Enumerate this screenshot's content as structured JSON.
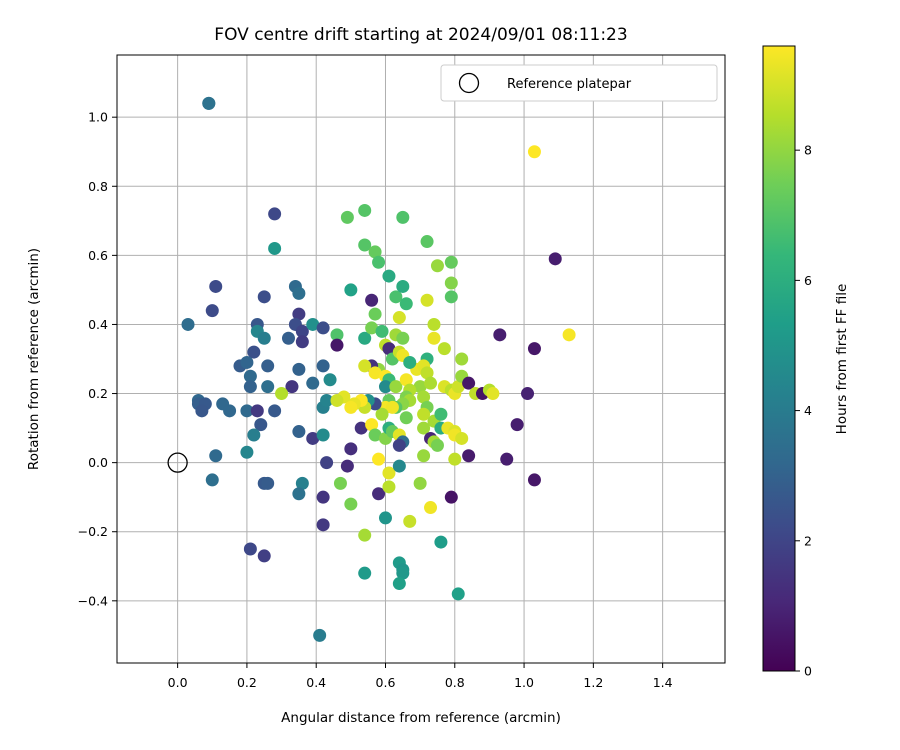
{
  "chart_data": {
    "type": "scatter",
    "title": "FOV centre drift starting at 2024/09/01 08:11:23",
    "xlabel": "Angular distance from reference (arcmin)",
    "ylabel": "Rotation from reference (arcmin)",
    "xlim": [
      -0.175,
      1.58
    ],
    "ylim": [
      -0.58,
      1.18
    ],
    "xticks": [
      0.0,
      0.2,
      0.4,
      0.6,
      0.8,
      1.0,
      1.2,
      1.4
    ],
    "xtick_labels": [
      "0.0",
      "0.2",
      "0.4",
      "0.6",
      "0.8",
      "1.0",
      "1.2",
      "1.4"
    ],
    "yticks": [
      -0.4,
      -0.2,
      0.0,
      0.2,
      0.4,
      0.6,
      0.8,
      1.0
    ],
    "ytick_labels": [
      "−0.4",
      "−0.2",
      "0.0",
      "0.2",
      "0.4",
      "0.6",
      "0.8",
      "1.0"
    ],
    "grid": true,
    "legend": {
      "placement": "top-right",
      "entries": [
        "Reference platepar"
      ]
    },
    "reference_point": {
      "x": 0.0,
      "y": 0.0,
      "label": "Reference platepar"
    },
    "colorbar": {
      "label": "Hours from first FF file",
      "colormap": "viridis",
      "range": [
        0,
        9.6
      ],
      "ticks": [
        0,
        2,
        4,
        6,
        8
      ],
      "tick_labels": [
        "0",
        "2",
        "4",
        "6",
        "8"
      ]
    },
    "points": [
      {
        "x": 0.09,
        "y": 1.04,
        "t": 3.9
      },
      {
        "x": 0.09,
        "y": 1.04,
        "t": 3.6
      },
      {
        "x": 0.28,
        "y": 0.72,
        "t": 2.1
      },
      {
        "x": 0.28,
        "y": 0.62,
        "t": 5.1
      },
      {
        "x": 0.03,
        "y": 0.4,
        "t": 3.4
      },
      {
        "x": 0.11,
        "y": 0.51,
        "t": 2.2
      },
      {
        "x": 0.1,
        "y": 0.44,
        "t": 2.2
      },
      {
        "x": 0.25,
        "y": 0.48,
        "t": 2.3
      },
      {
        "x": 0.23,
        "y": 0.4,
        "t": 2.6
      },
      {
        "x": 0.23,
        "y": 0.38,
        "t": 4.4
      },
      {
        "x": 0.25,
        "y": 0.36,
        "t": 4.1
      },
      {
        "x": 0.22,
        "y": 0.32,
        "t": 2.4
      },
      {
        "x": 0.18,
        "y": 0.28,
        "t": 2.8
      },
      {
        "x": 0.2,
        "y": 0.29,
        "t": 3.1
      },
      {
        "x": 0.21,
        "y": 0.25,
        "t": 3.3
      },
      {
        "x": 0.26,
        "y": 0.28,
        "t": 2.9
      },
      {
        "x": 0.21,
        "y": 0.22,
        "t": 3.0
      },
      {
        "x": 0.26,
        "y": 0.22,
        "t": 3.5
      },
      {
        "x": 0.06,
        "y": 0.18,
        "t": 3.2
      },
      {
        "x": 0.06,
        "y": 0.17,
        "t": 2.9
      },
      {
        "x": 0.08,
        "y": 0.17,
        "t": 2.7
      },
      {
        "x": 0.07,
        "y": 0.15,
        "t": 2.6
      },
      {
        "x": 0.13,
        "y": 0.17,
        "t": 3.2
      },
      {
        "x": 0.15,
        "y": 0.15,
        "t": 3.2
      },
      {
        "x": 0.2,
        "y": 0.15,
        "t": 3.3
      },
      {
        "x": 0.23,
        "y": 0.15,
        "t": 1.6
      },
      {
        "x": 0.28,
        "y": 0.15,
        "t": 2.7
      },
      {
        "x": 0.24,
        "y": 0.11,
        "t": 2.6
      },
      {
        "x": 0.22,
        "y": 0.08,
        "t": 4.1
      },
      {
        "x": 0.2,
        "y": 0.03,
        "t": 4.4
      },
      {
        "x": 0.11,
        "y": 0.02,
        "t": 3.3
      },
      {
        "x": 0.1,
        "y": -0.05,
        "t": 3.5
      },
      {
        "x": 0.25,
        "y": -0.06,
        "t": 2.7
      },
      {
        "x": 0.26,
        "y": -0.06,
        "t": 2.8
      },
      {
        "x": 0.21,
        "y": -0.25,
        "t": 2.1
      },
      {
        "x": 0.25,
        "y": -0.27,
        "t": 1.8
      },
      {
        "x": 0.34,
        "y": 0.51,
        "t": 3.3
      },
      {
        "x": 0.35,
        "y": 0.49,
        "t": 3.5
      },
      {
        "x": 0.35,
        "y": 0.43,
        "t": 1.7
      },
      {
        "x": 0.34,
        "y": 0.4,
        "t": 2.3
      },
      {
        "x": 0.36,
        "y": 0.38,
        "t": 2.0
      },
      {
        "x": 0.36,
        "y": 0.35,
        "t": 1.7
      },
      {
        "x": 0.32,
        "y": 0.36,
        "t": 2.9
      },
      {
        "x": 0.39,
        "y": 0.4,
        "t": 4.8
      },
      {
        "x": 0.42,
        "y": 0.39,
        "t": 2.3
      },
      {
        "x": 0.42,
        "y": 0.28,
        "t": 3.0
      },
      {
        "x": 0.35,
        "y": 0.27,
        "t": 3.0
      },
      {
        "x": 0.33,
        "y": 0.22,
        "t": 1.5
      },
      {
        "x": 0.3,
        "y": 0.2,
        "t": 8.5
      },
      {
        "x": 0.39,
        "y": 0.23,
        "t": 3.3
      },
      {
        "x": 0.44,
        "y": 0.24,
        "t": 4.6
      },
      {
        "x": 0.42,
        "y": 0.16,
        "t": 4.2
      },
      {
        "x": 0.43,
        "y": 0.18,
        "t": 4.3
      },
      {
        "x": 0.35,
        "y": 0.09,
        "t": 3.0
      },
      {
        "x": 0.39,
        "y": 0.07,
        "t": 1.7
      },
      {
        "x": 0.42,
        "y": 0.08,
        "t": 4.6
      },
      {
        "x": 0.43,
        "y": 0.0,
        "t": 1.9
      },
      {
        "x": 0.36,
        "y": -0.06,
        "t": 4.2
      },
      {
        "x": 0.35,
        "y": -0.09,
        "t": 3.6
      },
      {
        "x": 0.42,
        "y": -0.1,
        "t": 1.5
      },
      {
        "x": 0.42,
        "y": -0.18,
        "t": 1.6
      },
      {
        "x": 0.41,
        "y": -0.5,
        "t": 4.0
      },
      {
        "x": 0.46,
        "y": 0.37,
        "t": 6.9
      },
      {
        "x": 0.46,
        "y": 0.34,
        "t": 0.6
      },
      {
        "x": 0.49,
        "y": 0.71,
        "t": 7.2
      },
      {
        "x": 0.5,
        "y": 0.5,
        "t": 5.5
      },
      {
        "x": 0.54,
        "y": 0.73,
        "t": 7.0
      },
      {
        "x": 0.54,
        "y": 0.63,
        "t": 7.0
      },
      {
        "x": 0.57,
        "y": 0.61,
        "t": 7.3
      },
      {
        "x": 0.58,
        "y": 0.58,
        "t": 6.8
      },
      {
        "x": 0.56,
        "y": 0.47,
        "t": 1.0
      },
      {
        "x": 0.54,
        "y": 0.36,
        "t": 5.8
      },
      {
        "x": 0.56,
        "y": 0.39,
        "t": 7.6
      },
      {
        "x": 0.57,
        "y": 0.43,
        "t": 7.4
      },
      {
        "x": 0.59,
        "y": 0.38,
        "t": 6.6
      },
      {
        "x": 0.61,
        "y": 0.54,
        "t": 5.8
      },
      {
        "x": 0.63,
        "y": 0.48,
        "t": 6.8
      },
      {
        "x": 0.65,
        "y": 0.51,
        "t": 5.9
      },
      {
        "x": 0.65,
        "y": 0.71,
        "t": 6.9
      },
      {
        "x": 0.66,
        "y": 0.46,
        "t": 6.5
      },
      {
        "x": 0.64,
        "y": 0.42,
        "t": 9.0
      },
      {
        "x": 0.63,
        "y": 0.37,
        "t": 8.2
      },
      {
        "x": 0.65,
        "y": 0.36,
        "t": 7.6
      },
      {
        "x": 0.72,
        "y": 0.64,
        "t": 7.1
      },
      {
        "x": 0.75,
        "y": 0.57,
        "t": 8.1
      },
      {
        "x": 0.79,
        "y": 0.58,
        "t": 7.3
      },
      {
        "x": 0.79,
        "y": 0.52,
        "t": 7.8
      },
      {
        "x": 0.79,
        "y": 0.48,
        "t": 7.0
      },
      {
        "x": 0.72,
        "y": 0.47,
        "t": 9.0
      },
      {
        "x": 0.74,
        "y": 0.4,
        "t": 8.6
      },
      {
        "x": 0.74,
        "y": 0.36,
        "t": 9.3
      },
      {
        "x": 0.77,
        "y": 0.33,
        "t": 8.6
      },
      {
        "x": 0.82,
        "y": 0.3,
        "t": 8.2
      },
      {
        "x": 0.72,
        "y": 0.3,
        "t": 6.1
      },
      {
        "x": 0.69,
        "y": 0.27,
        "t": 9.3
      },
      {
        "x": 0.71,
        "y": 0.28,
        "t": 9.2
      },
      {
        "x": 0.72,
        "y": 0.26,
        "t": 8.7
      },
      {
        "x": 0.7,
        "y": 0.22,
        "t": 8.1
      },
      {
        "x": 0.73,
        "y": 0.23,
        "t": 8.4
      },
      {
        "x": 0.77,
        "y": 0.22,
        "t": 9.1
      },
      {
        "x": 0.79,
        "y": 0.21,
        "t": 8.6
      },
      {
        "x": 0.8,
        "y": 0.2,
        "t": 9.3
      },
      {
        "x": 0.81,
        "y": 0.22,
        "t": 8.9
      },
      {
        "x": 0.82,
        "y": 0.25,
        "t": 8.1
      },
      {
        "x": 0.84,
        "y": 0.23,
        "t": 0.6
      },
      {
        "x": 0.86,
        "y": 0.2,
        "t": 8.7
      },
      {
        "x": 0.88,
        "y": 0.2,
        "t": 0.5
      },
      {
        "x": 0.9,
        "y": 0.21,
        "t": 8.5
      },
      {
        "x": 0.91,
        "y": 0.2,
        "t": 9.2
      },
      {
        "x": 0.71,
        "y": 0.19,
        "t": 8.3
      },
      {
        "x": 0.72,
        "y": 0.16,
        "t": 7.6
      },
      {
        "x": 0.71,
        "y": 0.14,
        "t": 8.7
      },
      {
        "x": 0.74,
        "y": 0.12,
        "t": 8.3
      },
      {
        "x": 0.71,
        "y": 0.1,
        "t": 8.2
      },
      {
        "x": 0.76,
        "y": 0.14,
        "t": 6.6
      },
      {
        "x": 0.76,
        "y": 0.1,
        "t": 5.9
      },
      {
        "x": 0.78,
        "y": 0.1,
        "t": 9.3
      },
      {
        "x": 0.8,
        "y": 0.09,
        "t": 9.1
      },
      {
        "x": 0.8,
        "y": 0.08,
        "t": 9.4
      },
      {
        "x": 0.82,
        "y": 0.07,
        "t": 9.0
      },
      {
        "x": 0.73,
        "y": 0.07,
        "t": 1.0
      },
      {
        "x": 0.74,
        "y": 0.06,
        "t": 8.3
      },
      {
        "x": 0.75,
        "y": 0.05,
        "t": 7.6
      },
      {
        "x": 0.71,
        "y": 0.02,
        "t": 8.1
      },
      {
        "x": 0.8,
        "y": 0.01,
        "t": 8.7
      },
      {
        "x": 0.84,
        "y": 0.02,
        "t": 0.7
      },
      {
        "x": 0.7,
        "y": -0.06,
        "t": 8.0
      },
      {
        "x": 0.73,
        "y": -0.13,
        "t": 9.4
      },
      {
        "x": 0.79,
        "y": -0.1,
        "t": 0.5
      },
      {
        "x": 0.76,
        "y": -0.23,
        "t": 5.3
      },
      {
        "x": 0.81,
        "y": -0.38,
        "t": 5.4
      },
      {
        "x": 0.93,
        "y": 0.37,
        "t": 0.8
      },
      {
        "x": 1.01,
        "y": 0.2,
        "t": 0.9
      },
      {
        "x": 0.98,
        "y": 0.11,
        "t": 0.8
      },
      {
        "x": 0.95,
        "y": 0.01,
        "t": 0.8
      },
      {
        "x": 1.03,
        "y": 0.33,
        "t": 0.6
      },
      {
        "x": 1.09,
        "y": 0.59,
        "t": 0.8
      },
      {
        "x": 1.03,
        "y": 0.9,
        "t": 9.6
      },
      {
        "x": 1.03,
        "y": -0.05,
        "t": 0.6
      },
      {
        "x": 1.13,
        "y": 0.37,
        "t": 9.5
      },
      {
        "x": 0.6,
        "y": 0.34,
        "t": 8.7
      },
      {
        "x": 0.61,
        "y": 0.33,
        "t": 1.2
      },
      {
        "x": 0.62,
        "y": 0.3,
        "t": 7.0
      },
      {
        "x": 0.64,
        "y": 0.32,
        "t": 8.8
      },
      {
        "x": 0.65,
        "y": 0.31,
        "t": 9.4
      },
      {
        "x": 0.67,
        "y": 0.29,
        "t": 6.0
      },
      {
        "x": 0.58,
        "y": 0.27,
        "t": 8.0
      },
      {
        "x": 0.56,
        "y": 0.28,
        "t": 1.4
      },
      {
        "x": 0.54,
        "y": 0.28,
        "t": 9.0
      },
      {
        "x": 0.57,
        "y": 0.26,
        "t": 9.5
      },
      {
        "x": 0.6,
        "y": 0.25,
        "t": 9.6
      },
      {
        "x": 0.61,
        "y": 0.24,
        "t": 6.5
      },
      {
        "x": 0.6,
        "y": 0.22,
        "t": 4.6
      },
      {
        "x": 0.63,
        "y": 0.22,
        "t": 8.1
      },
      {
        "x": 0.66,
        "y": 0.24,
        "t": 9.5
      },
      {
        "x": 0.67,
        "y": 0.21,
        "t": 8.5
      },
      {
        "x": 0.66,
        "y": 0.19,
        "t": 7.7
      },
      {
        "x": 0.67,
        "y": 0.18,
        "t": 8.3
      },
      {
        "x": 0.65,
        "y": 0.17,
        "t": 7.9
      },
      {
        "x": 0.63,
        "y": 0.16,
        "t": 7.1
      },
      {
        "x": 0.61,
        "y": 0.18,
        "t": 7.3
      },
      {
        "x": 0.6,
        "y": 0.16,
        "t": 9.5
      },
      {
        "x": 0.62,
        "y": 0.16,
        "t": 9.4
      },
      {
        "x": 0.59,
        "y": 0.14,
        "t": 8.3
      },
      {
        "x": 0.57,
        "y": 0.17,
        "t": 2.2
      },
      {
        "x": 0.55,
        "y": 0.18,
        "t": 4.8
      },
      {
        "x": 0.54,
        "y": 0.16,
        "t": 8.8
      },
      {
        "x": 0.53,
        "y": 0.18,
        "t": 9.6
      },
      {
        "x": 0.51,
        "y": 0.17,
        "t": 9.3
      },
      {
        "x": 0.48,
        "y": 0.19,
        "t": 9.2
      },
      {
        "x": 0.46,
        "y": 0.18,
        "t": 8.9
      },
      {
        "x": 0.5,
        "y": 0.16,
        "t": 9.5
      },
      {
        "x": 0.53,
        "y": 0.1,
        "t": 1.4
      },
      {
        "x": 0.56,
        "y": 0.11,
        "t": 9.6
      },
      {
        "x": 0.57,
        "y": 0.08,
        "t": 7.4
      },
      {
        "x": 0.6,
        "y": 0.07,
        "t": 7.8
      },
      {
        "x": 0.61,
        "y": 0.1,
        "t": 6.0
      },
      {
        "x": 0.62,
        "y": 0.09,
        "t": 7.3
      },
      {
        "x": 0.64,
        "y": 0.08,
        "t": 9.2
      },
      {
        "x": 0.66,
        "y": 0.13,
        "t": 7.5
      },
      {
        "x": 0.65,
        "y": 0.06,
        "t": 3.5
      },
      {
        "x": 0.64,
        "y": 0.05,
        "t": 1.9
      },
      {
        "x": 0.5,
        "y": 0.04,
        "t": 1.3
      },
      {
        "x": 0.49,
        "y": -0.01,
        "t": 1.2
      },
      {
        "x": 0.58,
        "y": 0.01,
        "t": 9.6
      },
      {
        "x": 0.61,
        "y": -0.03,
        "t": 9.2
      },
      {
        "x": 0.64,
        "y": -0.01,
        "t": 4.5
      },
      {
        "x": 0.47,
        "y": -0.06,
        "t": 7.6
      },
      {
        "x": 0.5,
        "y": -0.12,
        "t": 7.6
      },
      {
        "x": 0.58,
        "y": -0.09,
        "t": 1.2
      },
      {
        "x": 0.61,
        "y": -0.07,
        "t": 8.6
      },
      {
        "x": 0.6,
        "y": -0.16,
        "t": 5.0
      },
      {
        "x": 0.67,
        "y": -0.17,
        "t": 8.8
      },
      {
        "x": 0.54,
        "y": -0.21,
        "t": 8.3
      },
      {
        "x": 0.54,
        "y": -0.32,
        "t": 5.2
      },
      {
        "x": 0.64,
        "y": -0.29,
        "t": 5.2
      },
      {
        "x": 0.65,
        "y": -0.31,
        "t": 5.0
      },
      {
        "x": 0.65,
        "y": -0.32,
        "t": 5.1
      },
      {
        "x": 0.64,
        "y": -0.35,
        "t": 5.4
      }
    ]
  }
}
